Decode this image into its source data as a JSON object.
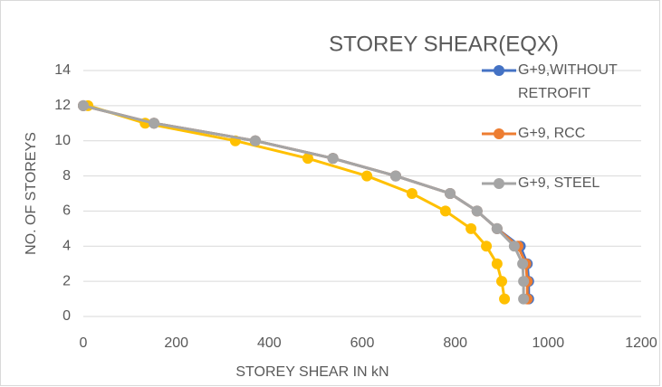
{
  "chart_data": {
    "type": "line",
    "title": "STOREY SHEAR(EQX)",
    "xlabel": "STOREY SHEAR IN kN",
    "ylabel": "NO. OF STOREYS",
    "xlim": [
      0,
      1200
    ],
    "xticks": [
      0,
      200,
      400,
      600,
      800,
      1000,
      1200
    ],
    "ylim": [
      0,
      14
    ],
    "yticks": [
      0,
      2,
      4,
      6,
      8,
      10,
      12,
      14
    ],
    "grid": true,
    "series": [
      {
        "name": "G+9,WITHOUT RETROFIT",
        "color": "#4472c4",
        "x": [
          0,
          152,
          370,
          537,
          672,
          789,
          847,
          890,
          940,
          955,
          958,
          958
        ],
        "values": [
          12,
          11,
          10,
          9,
          8,
          7,
          6,
          5,
          4,
          3,
          2,
          1
        ]
      },
      {
        "name": "G+9, RCC",
        "color": "#ed7d31",
        "x": [
          0,
          152,
          370,
          537,
          672,
          789,
          847,
          890,
          935,
          952,
          955,
          955
        ],
        "values": [
          12,
          11,
          10,
          9,
          8,
          7,
          6,
          5,
          4,
          3,
          2,
          1
        ]
      },
      {
        "color": "#ffc000",
        "x": [
          10,
          133,
          327,
          483,
          610,
          707,
          779,
          834,
          867,
          890,
          900,
          906
        ],
        "values": [
          12,
          11,
          10,
          9,
          8,
          7,
          6,
          5,
          4,
          3,
          2,
          1
        ]
      },
      {
        "name": "G+9, STEEL",
        "color": "#a5a5a5",
        "x": [
          0,
          152,
          370,
          537,
          672,
          789,
          847,
          890,
          927,
          945,
          947,
          947
        ],
        "values": [
          12,
          11,
          10,
          9,
          8,
          7,
          6,
          5,
          4,
          3,
          2,
          1
        ]
      }
    ]
  }
}
